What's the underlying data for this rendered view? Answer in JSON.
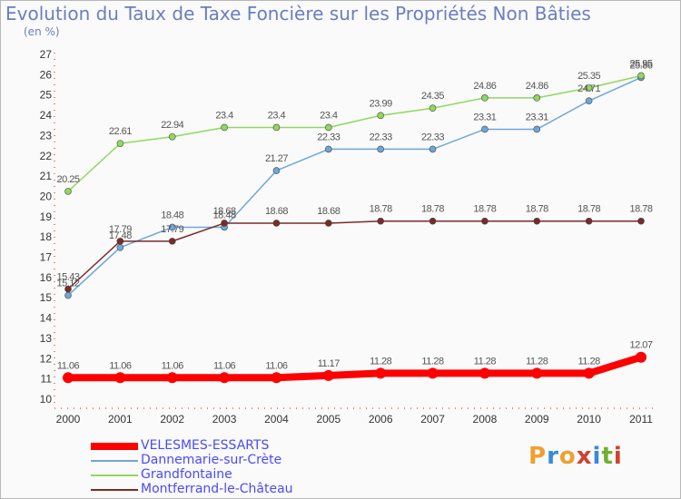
{
  "title": "Evolution du Taux de Taxe Foncière sur les Propriétés Non Bâties",
  "subtitle": "(en %)",
  "logo": [
    "P",
    "r",
    "o",
    "x",
    "i",
    "t",
    "i"
  ],
  "colors": {
    "logo": [
      "#f0a030",
      "#3a8ad8",
      "#f0a030",
      "#d04030",
      "#3a8ad8",
      "#70b030",
      "#d04030"
    ]
  },
  "chart_data": {
    "type": "line",
    "title": "Evolution du Taux de Taxe Foncière sur les Propriétés Non Bâties",
    "ylabel": "(en %)",
    "x": [
      "2000",
      "2001",
      "2002",
      "2003",
      "2004",
      "2005",
      "2006",
      "2007",
      "2008",
      "2009",
      "2010",
      "2011"
    ],
    "ylim": [
      10,
      27
    ],
    "yticks": [
      10,
      11,
      12,
      13,
      14,
      15,
      16,
      17,
      18,
      19,
      20,
      21,
      22,
      23,
      24,
      25,
      26,
      27
    ],
    "grid": false,
    "legend": "bottom-left",
    "series": [
      {
        "name": "VELESMES-ESSARTS",
        "color": "#ff0000",
        "values": [
          11.06,
          11.06,
          11.06,
          11.06,
          11.06,
          11.17,
          11.28,
          11.28,
          11.28,
          11.28,
          11.28,
          12.07
        ],
        "labels": [
          "11.06",
          "11.06",
          "11.06",
          "11.06",
          "11.06",
          "11.17",
          "11.28",
          "11.28",
          "11.28",
          "11.28",
          "11.28",
          "12.07"
        ]
      },
      {
        "name": "Dannemarie-sur-Crète",
        "color": "#6ea6d8",
        "values": [
          15.12,
          17.48,
          18.48,
          18.48,
          21.27,
          22.33,
          22.33,
          22.33,
          23.31,
          23.31,
          24.71,
          25.86
        ],
        "labels": [
          "15.12",
          "17.48",
          "18.48",
          "18.48",
          "21.27",
          "22.33",
          "22.33",
          "22.33",
          "23.31",
          "23.31",
          "24.71",
          "25.86"
        ]
      },
      {
        "name": "Grandfontaine",
        "color": "#90d860",
        "values": [
          20.25,
          22.61,
          22.94,
          23.4,
          23.4,
          23.4,
          23.99,
          24.35,
          24.86,
          24.86,
          25.35,
          25.95
        ],
        "labels": [
          "20.25",
          "22.61",
          "22.94",
          "23.4",
          "23.4",
          "23.4",
          "23.99",
          "24.35",
          "24.86",
          "24.86",
          "25.35",
          "25.95"
        ]
      },
      {
        "name": "Montferrand-le-Château",
        "color": "#7a2a2a",
        "values": [
          15.43,
          17.79,
          17.79,
          18.68,
          18.68,
          18.68,
          18.78,
          18.78,
          18.78,
          18.78,
          18.78,
          18.78
        ],
        "labels": [
          "15.43",
          "17.79",
          "17.79",
          "18.68",
          "18.68",
          "18.68",
          "18.78",
          "18.78",
          "18.78",
          "18.78",
          "18.78",
          "18.78"
        ]
      }
    ]
  }
}
